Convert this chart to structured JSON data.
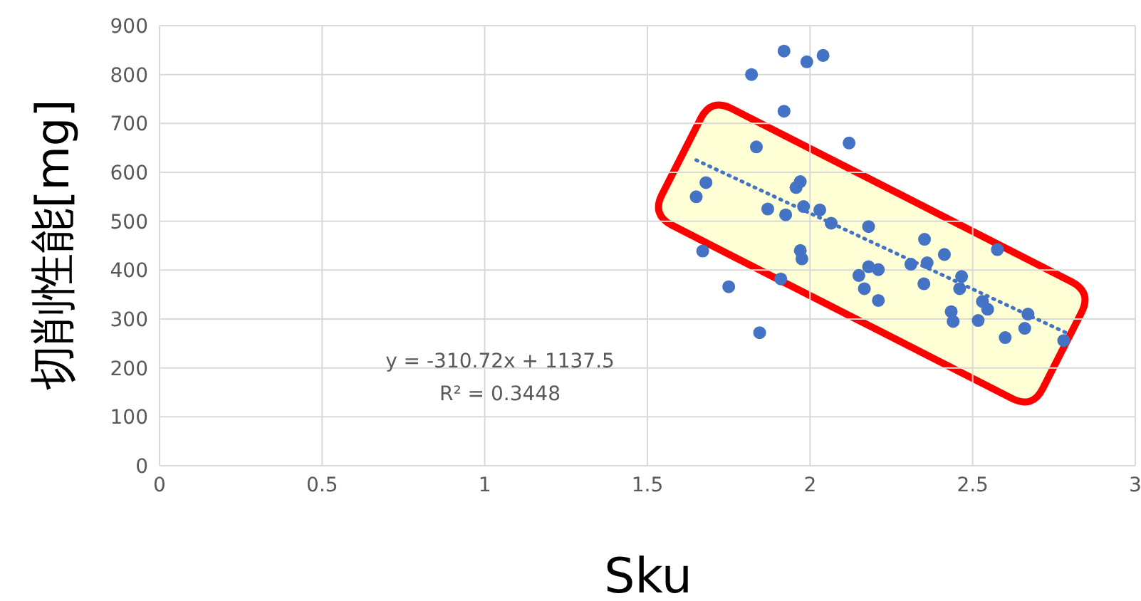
{
  "chart_data": {
    "type": "scatter",
    "xlabel": "Sku",
    "ylabel": "切削性能[mg]",
    "annotations": [
      "y = -310.72x + 1137.5",
      "R² = 0.3448"
    ],
    "xlim": [
      0,
      3
    ],
    "xticks": [
      0,
      0.5,
      1,
      1.5,
      2,
      2.5,
      3
    ],
    "ylim": [
      0,
      900
    ],
    "yticks": [
      0,
      100,
      200,
      300,
      400,
      500,
      600,
      700,
      800,
      900
    ],
    "grid": true,
    "legend": false,
    "series": [
      {
        "type": "scatter",
        "color": "#4472c4",
        "marker": "circle",
        "x": [
          1.92,
          1.99,
          2.04,
          1.82,
          1.92,
          2.12,
          1.835,
          1.68,
          1.65,
          1.957,
          1.97,
          1.87,
          1.925,
          1.98,
          2.03,
          2.065,
          2.18,
          1.67,
          1.97,
          1.975,
          1.91,
          1.75,
          1.845,
          2.352,
          2.576,
          2.413,
          2.31,
          2.36,
          2.18,
          2.21,
          2.15,
          2.167,
          2.21,
          2.35,
          2.466,
          2.46,
          2.53,
          2.546,
          2.434,
          2.44,
          2.517,
          2.67,
          2.66,
          2.6,
          2.78
        ],
        "values": [
          848,
          826,
          839,
          800,
          725,
          660,
          652,
          579,
          550,
          569,
          581,
          525,
          513,
          530,
          523,
          496,
          489,
          439,
          440,
          423,
          382,
          366,
          272,
          463,
          442,
          432,
          412,
          415,
          407,
          401,
          389,
          362,
          338,
          372,
          387,
          362,
          336,
          320,
          315,
          295,
          297,
          310,
          281,
          262,
          256
        ]
      },
      {
        "type": "line",
        "color": "#4472c4",
        "x": [
          1.65,
          2.8
        ],
        "values": [
          625,
          268
        ],
        "line_style": "dotted",
        "marker": "none"
      }
    ]
  }
}
